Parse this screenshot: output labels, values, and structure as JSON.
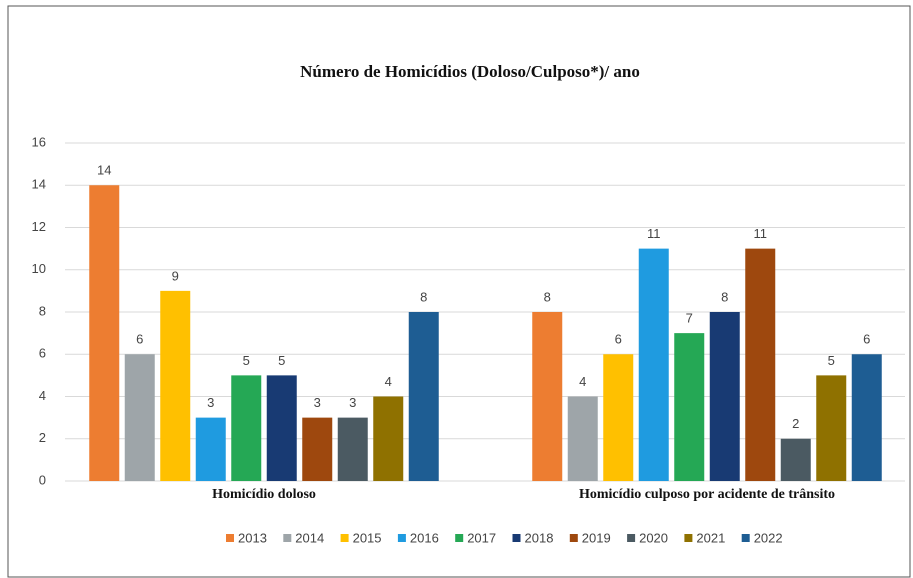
{
  "chart_data": {
    "type": "bar",
    "title": "Número de Homicídios (Doloso/Culposo*)/ ano",
    "categories": [
      "Homicídio doloso",
      "Homicídio culposo por acidente de trânsito"
    ],
    "series": [
      {
        "name": "2013",
        "color": "#ed7d31",
        "values": [
          14,
          8
        ]
      },
      {
        "name": "2014",
        "color": "#9ea5a9",
        "values": [
          6,
          4
        ]
      },
      {
        "name": "2015",
        "color": "#ffc000",
        "values": [
          9,
          6
        ]
      },
      {
        "name": "2016",
        "color": "#1f9be0",
        "values": [
          3,
          11
        ]
      },
      {
        "name": "2017",
        "color": "#25a855",
        "values": [
          5,
          7
        ]
      },
      {
        "name": "2018",
        "color": "#183a73",
        "values": [
          5,
          8
        ]
      },
      {
        "name": "2019",
        "color": "#9e480e",
        "values": [
          3,
          11
        ]
      },
      {
        "name": "2020",
        "color": "#4b5a62",
        "values": [
          3,
          2
        ]
      },
      {
        "name": "2021",
        "color": "#8f7100",
        "values": [
          4,
          5
        ]
      },
      {
        "name": "2022",
        "color": "#1e5d93",
        "values": [
          8,
          6
        ]
      }
    ],
    "ylim": [
      0,
      16
    ],
    "yticks": [
      0,
      2,
      4,
      6,
      8,
      10,
      12,
      14,
      16
    ],
    "grid": true,
    "legend": "bottom"
  }
}
